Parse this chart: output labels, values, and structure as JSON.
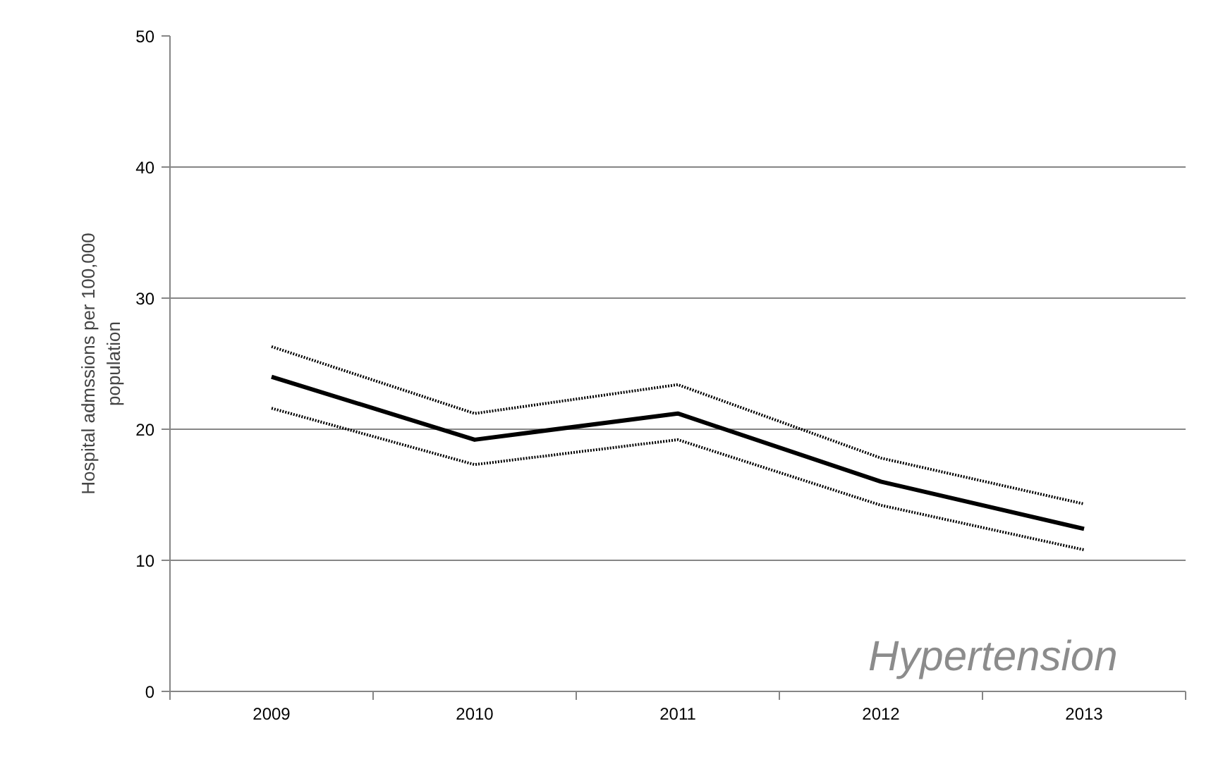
{
  "chart_data": {
    "type": "line",
    "ylabel": "Hospital admssions per 100,000\npopulation",
    "categories": [
      "2009",
      "2010",
      "2011",
      "2012",
      "2013"
    ],
    "series": [
      {
        "color": "#000000",
        "values": [
          24.0,
          19.2,
          21.2,
          16.0,
          12.4
        ]
      },
      {
        "color": "#000000",
        "line_style": "dotted",
        "values": [
          26.3,
          21.2,
          23.4,
          17.8,
          14.3
        ]
      },
      {
        "color": "#000000",
        "line_style": "dotted",
        "values": [
          21.6,
          17.3,
          19.2,
          14.2,
          10.8
        ]
      }
    ],
    "ylim": [
      0,
      50
    ],
    "yticks": [
      0,
      10,
      20,
      30,
      40,
      50
    ],
    "grid": "y",
    "line_style": "solid",
    "marker": "none",
    "annotations": [
      "Hypertension"
    ]
  }
}
